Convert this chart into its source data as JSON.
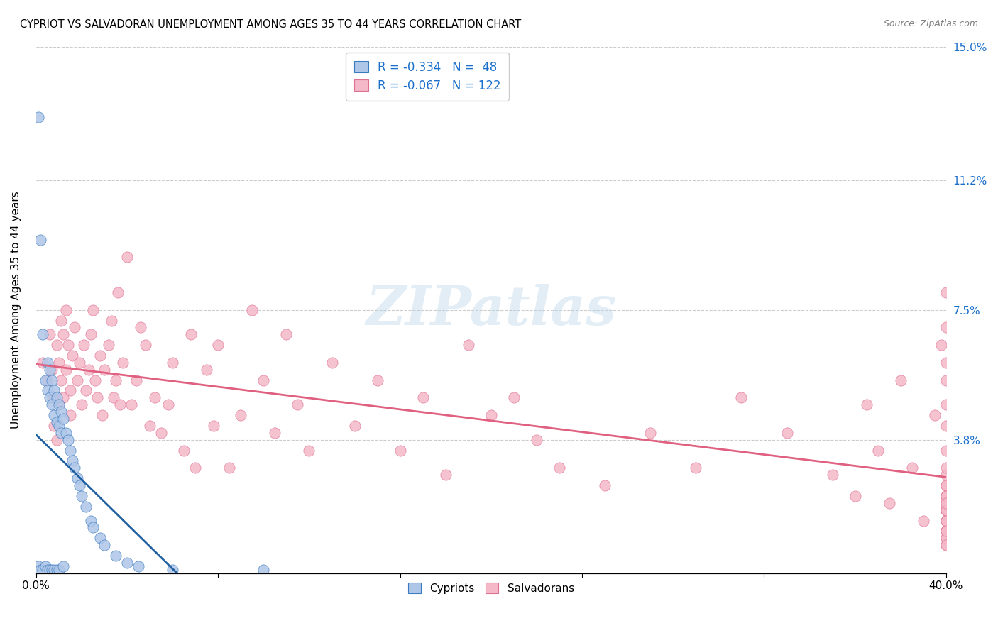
{
  "title": "CYPRIOT VS SALVADORAN UNEMPLOYMENT AMONG AGES 35 TO 44 YEARS CORRELATION CHART",
  "source": "Source: ZipAtlas.com",
  "ylabel": "Unemployment Among Ages 35 to 44 years",
  "xlim": [
    0.0,
    0.4
  ],
  "ylim": [
    0.0,
    0.15
  ],
  "ytick_positions": [
    0.0,
    0.038,
    0.075,
    0.112,
    0.15
  ],
  "ytick_labels": [
    "",
    "3.8%",
    "7.5%",
    "11.2%",
    "15.0%"
  ],
  "cypriot_color": "#aec6e8",
  "salvadoran_color": "#f4b8c8",
  "cypriot_edge_color": "#3a7abf",
  "salvadoran_edge_color": "#e07090",
  "cypriot_line_color": "#2060a0",
  "salvadoran_line_color": "#e06080",
  "legend_R_cypriot": "-0.334",
  "legend_N_cypriot": "48",
  "legend_R_salvadoran": "-0.067",
  "legend_N_salvadoran": "122",
  "watermark": "ZIPatlas",
  "cypriot_x": [
    0.001,
    0.001,
    0.002,
    0.002,
    0.003,
    0.003,
    0.004,
    0.004,
    0.005,
    0.005,
    0.005,
    0.006,
    0.006,
    0.006,
    0.007,
    0.007,
    0.007,
    0.008,
    0.008,
    0.008,
    0.009,
    0.009,
    0.009,
    0.01,
    0.01,
    0.01,
    0.011,
    0.011,
    0.012,
    0.012,
    0.013,
    0.014,
    0.015,
    0.016,
    0.017,
    0.018,
    0.019,
    0.02,
    0.022,
    0.024,
    0.025,
    0.028,
    0.03,
    0.035,
    0.04,
    0.045,
    0.06,
    0.1
  ],
  "cypriot_y": [
    0.13,
    0.002,
    0.095,
    0.001,
    0.068,
    0.001,
    0.055,
    0.002,
    0.06,
    0.052,
    0.001,
    0.058,
    0.05,
    0.001,
    0.055,
    0.048,
    0.001,
    0.052,
    0.045,
    0.001,
    0.05,
    0.043,
    0.001,
    0.048,
    0.042,
    0.001,
    0.046,
    0.04,
    0.044,
    0.002,
    0.04,
    0.038,
    0.035,
    0.032,
    0.03,
    0.027,
    0.025,
    0.022,
    0.019,
    0.015,
    0.013,
    0.01,
    0.008,
    0.005,
    0.003,
    0.002,
    0.001,
    0.001
  ],
  "salvadoran_x": [
    0.003,
    0.005,
    0.006,
    0.007,
    0.008,
    0.008,
    0.009,
    0.009,
    0.01,
    0.01,
    0.011,
    0.011,
    0.012,
    0.012,
    0.013,
    0.013,
    0.014,
    0.015,
    0.015,
    0.016,
    0.017,
    0.018,
    0.019,
    0.02,
    0.021,
    0.022,
    0.023,
    0.024,
    0.025,
    0.026,
    0.027,
    0.028,
    0.029,
    0.03,
    0.032,
    0.033,
    0.034,
    0.035,
    0.036,
    0.037,
    0.038,
    0.04,
    0.042,
    0.044,
    0.046,
    0.048,
    0.05,
    0.052,
    0.055,
    0.058,
    0.06,
    0.065,
    0.068,
    0.07,
    0.075,
    0.078,
    0.08,
    0.085,
    0.09,
    0.095,
    0.1,
    0.105,
    0.11,
    0.115,
    0.12,
    0.13,
    0.14,
    0.15,
    0.16,
    0.17,
    0.18,
    0.19,
    0.2,
    0.21,
    0.22,
    0.23,
    0.25,
    0.27,
    0.29,
    0.31,
    0.33,
    0.35,
    0.36,
    0.365,
    0.37,
    0.375,
    0.38,
    0.385,
    0.39,
    0.395,
    0.398,
    0.4,
    0.4,
    0.4,
    0.4,
    0.4,
    0.4,
    0.4,
    0.4,
    0.4,
    0.4,
    0.4,
    0.4,
    0.4,
    0.4,
    0.4,
    0.4,
    0.4,
    0.4,
    0.4,
    0.4,
    0.4,
    0.4,
    0.4,
    0.4,
    0.4,
    0.4,
    0.4,
    0.4,
    0.4,
    0.4,
    0.4,
    0.4,
    0.4
  ],
  "salvadoran_y": [
    0.06,
    0.055,
    0.068,
    0.058,
    0.05,
    0.042,
    0.065,
    0.038,
    0.06,
    0.048,
    0.072,
    0.055,
    0.068,
    0.05,
    0.075,
    0.058,
    0.065,
    0.052,
    0.045,
    0.062,
    0.07,
    0.055,
    0.06,
    0.048,
    0.065,
    0.052,
    0.058,
    0.068,
    0.075,
    0.055,
    0.05,
    0.062,
    0.045,
    0.058,
    0.065,
    0.072,
    0.05,
    0.055,
    0.08,
    0.048,
    0.06,
    0.09,
    0.048,
    0.055,
    0.07,
    0.065,
    0.042,
    0.05,
    0.04,
    0.048,
    0.06,
    0.035,
    0.068,
    0.03,
    0.058,
    0.042,
    0.065,
    0.03,
    0.045,
    0.075,
    0.055,
    0.04,
    0.068,
    0.048,
    0.035,
    0.06,
    0.042,
    0.055,
    0.035,
    0.05,
    0.028,
    0.065,
    0.045,
    0.05,
    0.038,
    0.03,
    0.025,
    0.04,
    0.03,
    0.05,
    0.04,
    0.028,
    0.022,
    0.048,
    0.035,
    0.02,
    0.055,
    0.03,
    0.015,
    0.045,
    0.065,
    0.08,
    0.07,
    0.055,
    0.06,
    0.042,
    0.048,
    0.028,
    0.035,
    0.022,
    0.025,
    0.018,
    0.03,
    0.015,
    0.022,
    0.018,
    0.012,
    0.025,
    0.015,
    0.02,
    0.012,
    0.018,
    0.01,
    0.022,
    0.015,
    0.012,
    0.008,
    0.018,
    0.012,
    0.02,
    0.01,
    0.015,
    0.008,
    0.012
  ]
}
